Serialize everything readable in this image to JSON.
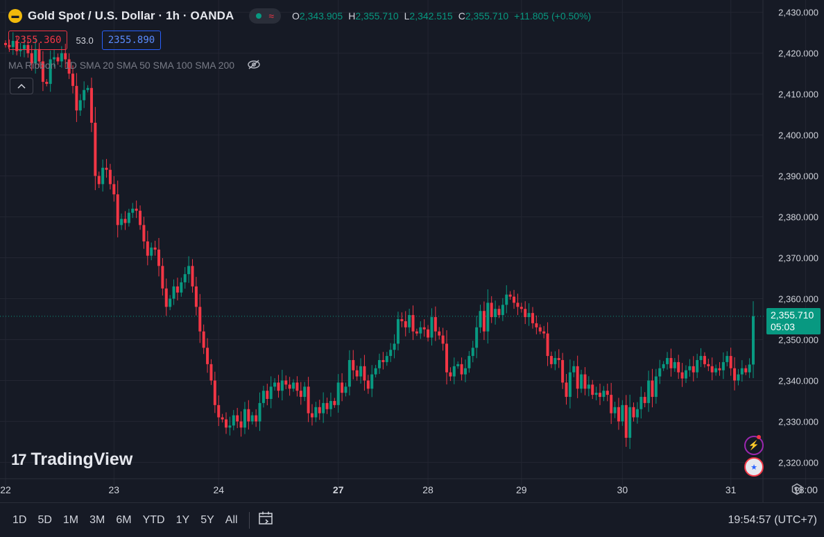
{
  "header": {
    "symbol_title": "Gold Spot / U.S. Dollar · 1h · OANDA",
    "ohlc": [
      {
        "key": "O",
        "value": "2,343.905"
      },
      {
        "key": "H",
        "value": "2,355.710"
      },
      {
        "key": "L",
        "value": "2,342.515"
      },
      {
        "key": "C",
        "value": "2,355.710"
      }
    ],
    "change": "+11.805 (+0.50%)"
  },
  "trade": {
    "sell_price": "2355.360",
    "spread": "53.0",
    "buy_price": "2355.890"
  },
  "indicator": {
    "label": "MA Ribbon · 1D SMA 20 SMA 50 SMA 100 SMA 200"
  },
  "last_price_tag": {
    "price": "2,355.710",
    "countdown": "05:03"
  },
  "logo": {
    "text": "TradingView"
  },
  "bottombar": {
    "ranges": [
      "1D",
      "5D",
      "1M",
      "3M",
      "6M",
      "YTD",
      "1Y",
      "5Y",
      "All"
    ],
    "clock": "19:54:57 (UTC+7)"
  },
  "icons": {
    "symbol": "gold-coin-icon",
    "wave": "wave-icon",
    "eye": "eye-crossed-icon",
    "collapse": "chevron-up-icon",
    "bolt": "lightning-icon",
    "flag": "us-flag-icon",
    "date_range": "calendar-range-icon",
    "settings": "gear-icon"
  },
  "colors": {
    "background": "#161a25",
    "grid": "#232632",
    "up": "#089981",
    "down": "#f23645",
    "text": "#d1d4dc",
    "muted": "#787b86"
  },
  "chart_data": {
    "type": "candlestick",
    "title": "Gold Spot / U.S. Dollar · 1h · OANDA",
    "xlabel": "",
    "ylabel": "",
    "ylim": [
      2316,
      2433
    ],
    "y_ticks": [
      2320,
      2330,
      2340,
      2350,
      2360,
      2370,
      2380,
      2390,
      2400,
      2410,
      2420,
      2430
    ],
    "y_tick_labels": [
      "2,320.000",
      "2,330.000",
      "2,340.000",
      "2,350.000",
      "2,360.000",
      "2,370.000",
      "2,380.000",
      "2,390.000",
      "2,400.000",
      "2,410.000",
      "2,420.000",
      "2,430.000"
    ],
    "x_tick_labels": [
      "22",
      "23",
      "24",
      "27",
      "28",
      "29",
      "30",
      "31",
      "18:00"
    ],
    "x_tick_bar_index": [
      0,
      29,
      57,
      89,
      113,
      138,
      165,
      194,
      214
    ],
    "last_price": 2355.71,
    "grid": true,
    "series": [
      {
        "close": [
          2422.0,
          2421.5,
          2423.0,
          2420.5,
          2421.0,
          2422.0,
          2420.0,
          2417.5,
          2421.0,
          2418.0,
          2413.0,
          2412.5,
          2418.5,
          2419.0,
          2418.0,
          2420.0,
          2418.5,
          2415.0,
          2412.0,
          2406.0,
          2408.5,
          2411.0,
          2411.5,
          2403.0,
          2390.0,
          2388.0,
          2392.0,
          2391.5,
          2388.0,
          2385.5,
          2378.0,
          2379.5,
          2378.5,
          2381.0,
          2382.0,
          2381.5,
          2378.0,
          2374.0,
          2370.5,
          2372.5,
          2372.0,
          2368.0,
          2362.5,
          2358.0,
          2360.0,
          2363.0,
          2361.5,
          2364.0,
          2366.0,
          2368.0,
          2363.0,
          2358.0,
          2352.0,
          2348.0,
          2344.0,
          2340.0,
          2334.0,
          2331.0,
          2330.5,
          2328.5,
          2329.0,
          2331.5,
          2330.0,
          2328.5,
          2333.0,
          2330.0,
          2331.5,
          2330.0,
          2334.5,
          2337.5,
          2335.5,
          2338.5,
          2339.5,
          2337.5,
          2340.0,
          2339.0,
          2338.0,
          2339.5,
          2337.5,
          2336.0,
          2338.5,
          2332.0,
          2331.0,
          2333.5,
          2332.0,
          2334.5,
          2333.0,
          2335.0,
          2334.0,
          2339.5,
          2337.0,
          2338.5,
          2345.0,
          2342.5,
          2341.0,
          2343.5,
          2340.0,
          2338.0,
          2341.5,
          2343.0,
          2345.0,
          2344.5,
          2346.0,
          2347.5,
          2349.0,
          2355.0,
          2354.5,
          2353.0,
          2356.0,
          2352.0,
          2351.5,
          2353.0,
          2352.5,
          2350.5,
          2355.5,
          2352.0,
          2351.0,
          2349.0,
          2342.0,
          2341.0,
          2343.5,
          2344.0,
          2341.5,
          2343.0,
          2346.0,
          2348.0,
          2353.0,
          2357.0,
          2352.0,
          2359.0,
          2355.5,
          2357.5,
          2356.0,
          2358.5,
          2361.0,
          2360.5,
          2359.0,
          2358.0,
          2357.5,
          2355.5,
          2356.5,
          2354.0,
          2353.0,
          2352.0,
          2351.5,
          2346.0,
          2344.0,
          2345.5,
          2345.0,
          2339.5,
          2336.0,
          2342.0,
          2343.5,
          2338.0,
          2341.5,
          2338.0,
          2339.0,
          2336.5,
          2337.0,
          2336.0,
          2337.5,
          2336.5,
          2332.0,
          2333.5,
          2330.0,
          2334.0,
          2326.0,
          2333.5,
          2331.0,
          2333.0,
          2336.0,
          2334.5,
          2340.0,
          2336.0,
          2341.0,
          2343.0,
          2344.0,
          2345.5,
          2343.0,
          2344.5,
          2342.0,
          2340.5,
          2342.5,
          2343.5,
          2342.0,
          2345.0,
          2346.0,
          2344.0,
          2343.5,
          2342.0,
          2343.0,
          2342.5,
          2344.5,
          2346.0,
          2343.0,
          2340.0,
          2341.5,
          2343.0,
          2342.0,
          2343.905,
          2355.71
        ],
        "open": [
          2422.5,
          2422.0,
          2421.5,
          2423.0,
          2420.5,
          2421.0,
          2422.0,
          2420.0,
          2417.5,
          2421.0,
          2418.0,
          2413.0,
          2412.5,
          2418.5,
          2419.0,
          2418.0,
          2420.0,
          2418.5,
          2415.0,
          2412.0,
          2406.0,
          2408.5,
          2411.0,
          2411.5,
          2403.0,
          2390.0,
          2388.0,
          2392.0,
          2391.5,
          2388.0,
          2385.5,
          2378.0,
          2379.5,
          2378.5,
          2381.0,
          2382.0,
          2381.5,
          2378.0,
          2374.0,
          2370.5,
          2372.5,
          2372.0,
          2368.0,
          2362.5,
          2358.0,
          2360.0,
          2363.0,
          2361.5,
          2364.0,
          2366.0,
          2368.0,
          2363.0,
          2358.0,
          2352.0,
          2348.0,
          2344.0,
          2340.0,
          2334.0,
          2331.0,
          2330.5,
          2328.5,
          2329.0,
          2331.5,
          2330.0,
          2328.5,
          2333.0,
          2330.0,
          2331.5,
          2330.0,
          2334.5,
          2337.5,
          2335.5,
          2338.5,
          2339.5,
          2337.5,
          2340.0,
          2339.0,
          2338.0,
          2339.5,
          2337.5,
          2336.0,
          2338.5,
          2332.0,
          2331.0,
          2333.5,
          2332.0,
          2334.5,
          2333.0,
          2335.0,
          2334.0,
          2339.5,
          2337.0,
          2338.5,
          2345.0,
          2342.5,
          2341.0,
          2343.5,
          2340.0,
          2338.0,
          2341.5,
          2343.0,
          2345.0,
          2344.5,
          2346.0,
          2347.5,
          2349.0,
          2355.0,
          2354.5,
          2353.0,
          2356.0,
          2352.0,
          2351.5,
          2353.0,
          2352.5,
          2350.5,
          2355.5,
          2352.0,
          2351.0,
          2349.0,
          2342.0,
          2341.0,
          2343.5,
          2344.0,
          2341.5,
          2343.0,
          2346.0,
          2348.0,
          2353.0,
          2357.0,
          2352.0,
          2359.0,
          2355.5,
          2357.5,
          2356.0,
          2358.5,
          2361.0,
          2360.5,
          2359.0,
          2358.0,
          2357.5,
          2355.5,
          2356.5,
          2354.0,
          2353.0,
          2352.0,
          2351.5,
          2346.0,
          2344.0,
          2345.5,
          2345.0,
          2339.5,
          2336.0,
          2342.0,
          2343.5,
          2338.0,
          2341.5,
          2338.0,
          2339.0,
          2336.5,
          2337.0,
          2336.0,
          2337.5,
          2336.5,
          2332.0,
          2333.5,
          2330.0,
          2334.0,
          2326.0,
          2333.5,
          2331.0,
          2333.0,
          2336.0,
          2334.5,
          2340.0,
          2336.0,
          2341.0,
          2343.0,
          2344.0,
          2345.5,
          2343.0,
          2344.5,
          2342.0,
          2340.5,
          2342.5,
          2343.5,
          2342.0,
          2345.0,
          2346.0,
          2344.0,
          2343.5,
          2342.0,
          2343.0,
          2342.5,
          2344.5,
          2346.0,
          2343.0,
          2340.0,
          2341.5,
          2343.0,
          2342.0,
          2343.905
        ]
      }
    ]
  }
}
